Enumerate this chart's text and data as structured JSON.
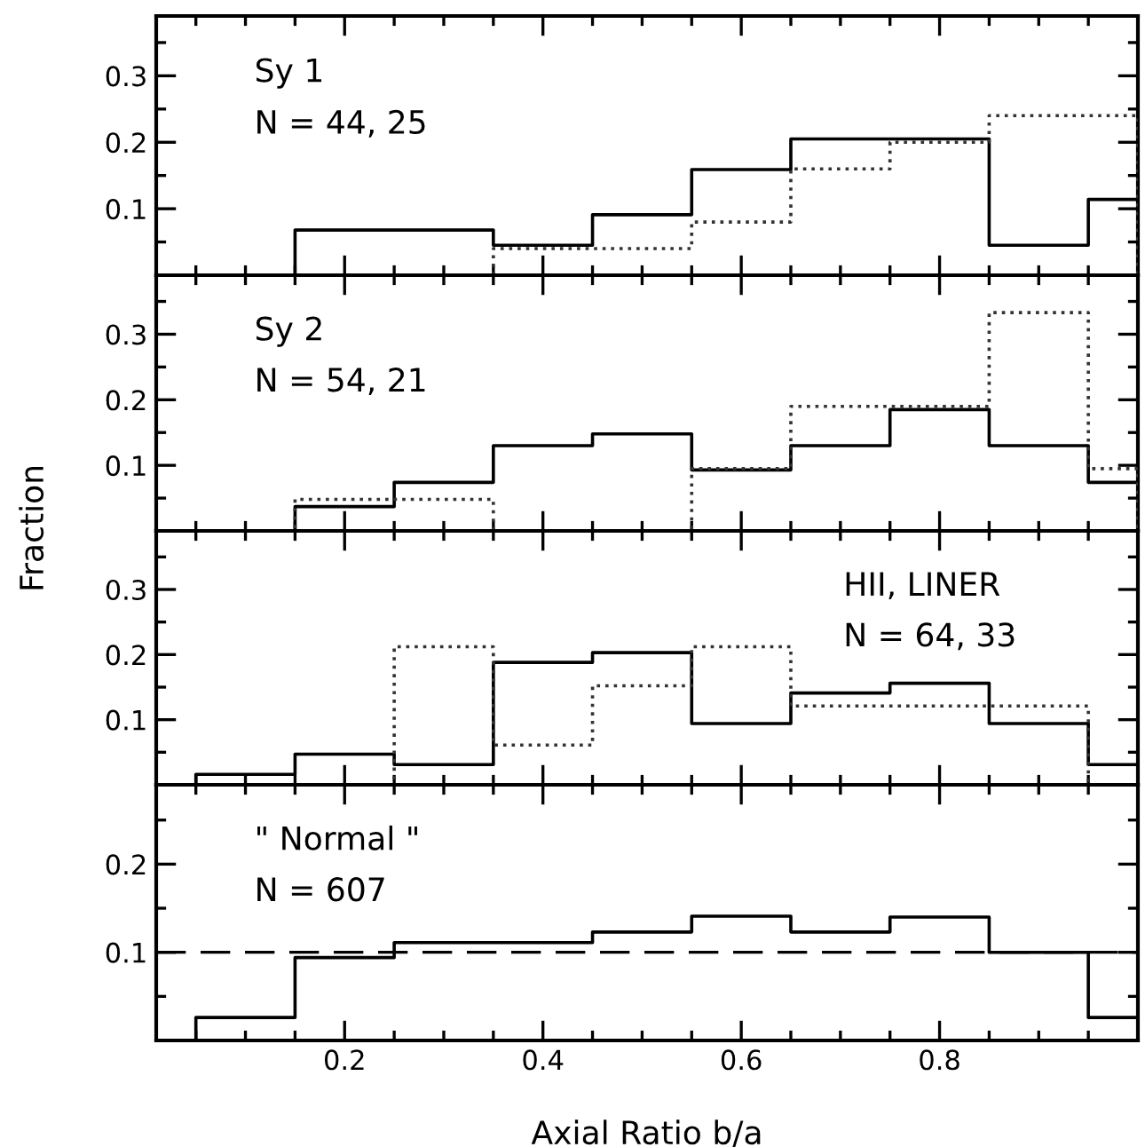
{
  "chart_data": [
    {
      "type": "histogram",
      "bins": [
        0.05,
        0.15,
        0.25,
        0.35,
        0.45,
        0.55,
        0.65,
        0.75,
        0.85,
        0.95,
        1.0
      ],
      "series": [
        {
          "color": "#000000",
          "line_style": "solid",
          "values": [
            0,
            0.068,
            0.068,
            0.045,
            0.091,
            0.159,
            0.205,
            0.205,
            0.045,
            0.114
          ]
        },
        {
          "color": "#333333",
          "line_style": "dotted",
          "values": [
            0,
            0,
            0,
            0.04,
            0.04,
            0.08,
            0.16,
            0.2,
            0.24,
            0.24
          ]
        }
      ],
      "annotations": [
        "Sy 1",
        "N = 44, 25"
      ],
      "xlim": [
        0.01,
        1.0
      ],
      "xticks": [
        {
          "value": 0.05,
          "label": null
        },
        {
          "value": 0.1,
          "label": null
        },
        {
          "value": 0.15,
          "label": null
        },
        0.2,
        {
          "value": 0.25,
          "label": null
        },
        {
          "value": 0.3,
          "label": null
        },
        {
          "value": 0.35,
          "label": null
        },
        0.4,
        {
          "value": 0.45,
          "label": null
        },
        {
          "value": 0.5,
          "label": null
        },
        {
          "value": 0.55,
          "label": null
        },
        0.6,
        {
          "value": 0.65,
          "label": null
        },
        {
          "value": 0.7,
          "label": null
        },
        {
          "value": 0.75,
          "label": null
        },
        0.8,
        {
          "value": 0.85,
          "label": null
        },
        {
          "value": 0.9,
          "label": null
        },
        {
          "value": 0.95,
          "label": null
        }
      ],
      "ylim": [
        0,
        0.39
      ],
      "yticks": [
        {
          "value": 0.05,
          "label": null
        },
        0.1,
        {
          "value": 0.15,
          "label": null
        },
        0.2,
        {
          "value": 0.25,
          "label": null
        },
        0.3,
        {
          "value": 0.35,
          "label": null
        }
      ],
      "tick_labels": "y"
    },
    {
      "type": "histogram",
      "bins": [
        0.05,
        0.15,
        0.25,
        0.35,
        0.45,
        0.55,
        0.65,
        0.75,
        0.85,
        0.95,
        1.0
      ],
      "series": [
        {
          "color": "#000000",
          "line_style": "solid",
          "values": [
            0,
            0.037,
            0.074,
            0.13,
            0.148,
            0.093,
            0.13,
            0.185,
            0.13,
            0.074
          ]
        },
        {
          "color": "#333333",
          "line_style": "dotted",
          "values": [
            0,
            0.048,
            0.048,
            0,
            0,
            0.095,
            0.19,
            0.19,
            0.333,
            0.095
          ]
        }
      ],
      "annotations": [
        "Sy 2",
        "N = 54, 21"
      ],
      "ylabel": "Fraction",
      "xlim": [
        0.01,
        1.0
      ],
      "xticks": [
        {
          "value": 0.05,
          "label": null
        },
        {
          "value": 0.1,
          "label": null
        },
        {
          "value": 0.15,
          "label": null
        },
        0.2,
        {
          "value": 0.25,
          "label": null
        },
        {
          "value": 0.3,
          "label": null
        },
        {
          "value": 0.35,
          "label": null
        },
        0.4,
        {
          "value": 0.45,
          "label": null
        },
        {
          "value": 0.5,
          "label": null
        },
        {
          "value": 0.55,
          "label": null
        },
        0.6,
        {
          "value": 0.65,
          "label": null
        },
        {
          "value": 0.7,
          "label": null
        },
        {
          "value": 0.75,
          "label": null
        },
        0.8,
        {
          "value": 0.85,
          "label": null
        },
        {
          "value": 0.9,
          "label": null
        },
        {
          "value": 0.95,
          "label": null
        }
      ],
      "ylim": [
        0,
        0.39
      ],
      "yticks": [
        {
          "value": 0.05,
          "label": null
        },
        0.1,
        {
          "value": 0.15,
          "label": null
        },
        0.2,
        {
          "value": 0.25,
          "label": null
        },
        0.3,
        {
          "value": 0.35,
          "label": null
        }
      ],
      "tick_labels": "y"
    },
    {
      "type": "histogram",
      "bins": [
        0.05,
        0.15,
        0.25,
        0.35,
        0.45,
        0.55,
        0.65,
        0.75,
        0.85,
        0.95,
        1.0
      ],
      "series": [
        {
          "color": "#000000",
          "line_style": "solid",
          "values": [
            0.016,
            0.047,
            0.031,
            0.188,
            0.203,
            0.094,
            0.141,
            0.156,
            0.094,
            0.031
          ]
        },
        {
          "color": "#333333",
          "line_style": "dotted",
          "values": [
            0,
            0,
            0.212,
            0.061,
            0.152,
            0.212,
            0.121,
            0.121,
            0.121,
            0
          ]
        }
      ],
      "annotations": [
        "HII, LINER",
        "N = 64, 33"
      ],
      "xlim": [
        0.01,
        1.0
      ],
      "xticks": [
        {
          "value": 0.05,
          "label": null
        },
        {
          "value": 0.1,
          "label": null
        },
        {
          "value": 0.15,
          "label": null
        },
        0.2,
        {
          "value": 0.25,
          "label": null
        },
        {
          "value": 0.3,
          "label": null
        },
        {
          "value": 0.35,
          "label": null
        },
        0.4,
        {
          "value": 0.45,
          "label": null
        },
        {
          "value": 0.5,
          "label": null
        },
        {
          "value": 0.55,
          "label": null
        },
        0.6,
        {
          "value": 0.65,
          "label": null
        },
        {
          "value": 0.7,
          "label": null
        },
        {
          "value": 0.75,
          "label": null
        },
        0.8,
        {
          "value": 0.85,
          "label": null
        },
        {
          "value": 0.9,
          "label": null
        },
        {
          "value": 0.95,
          "label": null
        }
      ],
      "ylim": [
        0,
        0.39
      ],
      "yticks": [
        {
          "value": 0.05,
          "label": null
        },
        0.1,
        {
          "value": 0.15,
          "label": null
        },
        0.2,
        {
          "value": 0.25,
          "label": null
        },
        0.3,
        {
          "value": 0.35,
          "label": null
        }
      ],
      "tick_labels": "y"
    },
    {
      "type": "histogram",
      "bins": [
        0.05,
        0.15,
        0.25,
        0.35,
        0.45,
        0.55,
        0.65,
        0.75,
        0.85,
        0.95,
        1.0
      ],
      "series": [
        {
          "color": "#000000",
          "line_style": "solid",
          "values": [
            0.026,
            0.094,
            0.111,
            0.111,
            0.123,
            0.141,
            0.123,
            0.14,
            0.1,
            0.026
          ]
        }
      ],
      "annotations": [
        "\" Normal \"",
        "N = 607"
      ],
      "xlabel": "Axial Ratio b/a",
      "ref_lines": [
        {
          "axis": "y",
          "value": 0.1,
          "color": "#000000",
          "line_style": "dashed"
        }
      ],
      "xlim": [
        0.01,
        1.0
      ],
      "xticks": [
        {
          "value": 0.05,
          "label": null
        },
        {
          "value": 0.1,
          "label": null
        },
        {
          "value": 0.15,
          "label": null
        },
        0.2,
        {
          "value": 0.25,
          "label": null
        },
        {
          "value": 0.3,
          "label": null
        },
        {
          "value": 0.35,
          "label": null
        },
        0.4,
        {
          "value": 0.45,
          "label": null
        },
        {
          "value": 0.5,
          "label": null
        },
        {
          "value": 0.55,
          "label": null
        },
        0.6,
        {
          "value": 0.65,
          "label": null
        },
        {
          "value": 0.7,
          "label": null
        },
        {
          "value": 0.75,
          "label": null
        },
        0.8,
        {
          "value": 0.85,
          "label": null
        },
        {
          "value": 0.9,
          "label": null
        },
        {
          "value": 0.95,
          "label": null
        }
      ],
      "ylim": [
        0,
        0.29
      ],
      "yticks": [
        {
          "value": 0.05,
          "label": null
        },
        0.1,
        {
          "value": 0.15,
          "label": null
        },
        0.2,
        {
          "value": 0.25,
          "label": null
        }
      ]
    }
  ]
}
